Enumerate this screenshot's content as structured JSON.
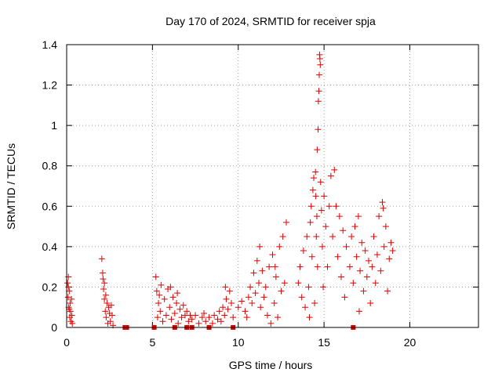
{
  "chart_data": {
    "type": "scatter",
    "title": "Day 170 of 2024, SRMTID for receiver spja",
    "xlabel": "GPS time / hours",
    "ylabel": "SRMTID / TECUs",
    "xlim": [
      0,
      24
    ],
    "ylim": [
      0,
      1.4
    ],
    "x_ticks": [
      0,
      5,
      10,
      15,
      20
    ],
    "x_tick_labels": [
      "0",
      "5",
      "10",
      "15",
      "20"
    ],
    "y_ticks": [
      0,
      0.2,
      0.4,
      0.6,
      0.8,
      1.0,
      1.2,
      1.4
    ],
    "y_tick_labels": [
      "0",
      "0.2",
      "0.4",
      "0.6",
      "0.8",
      "1",
      "1.2",
      "1.4"
    ],
    "grid": true,
    "marker": "+",
    "marker_color": "#e00000",
    "series": [
      {
        "name": "SRMTID (plus markers)",
        "points": [
          [
            0.05,
            0.22
          ],
          [
            0.08,
            0.15
          ],
          [
            0.1,
            0.25
          ],
          [
            0.12,
            0.1
          ],
          [
            0.15,
            0.18
          ],
          [
            0.18,
            0.05
          ],
          [
            0.2,
            0.12
          ],
          [
            0.22,
            0.08
          ],
          [
            0.25,
            0.03
          ],
          [
            0.28,
            0.14
          ],
          [
            0.3,
            0.06
          ],
          [
            0.33,
            0.02
          ],
          [
            0.1,
            0.2
          ],
          [
            0.15,
            0.09
          ],
          [
            2.05,
            0.34
          ],
          [
            2.1,
            0.27
          ],
          [
            2.12,
            0.24
          ],
          [
            2.15,
            0.19
          ],
          [
            2.2,
            0.14
          ],
          [
            2.25,
            0.08
          ],
          [
            2.3,
            0.05
          ],
          [
            2.35,
            0.12
          ],
          [
            2.4,
            0.02
          ],
          [
            2.45,
            0.1
          ],
          [
            2.5,
            0.07
          ],
          [
            2.55,
            0.03
          ],
          [
            2.6,
            0.11
          ],
          [
            2.65,
            0.06
          ],
          [
            2.7,
            0.01
          ],
          [
            2.2,
            0.22
          ],
          [
            2.28,
            0.16
          ],
          [
            5.2,
            0.25
          ],
          [
            5.25,
            0.18
          ],
          [
            5.3,
            0.05
          ],
          [
            5.35,
            0.12
          ],
          [
            5.45,
            0.08
          ],
          [
            5.5,
            0.21
          ],
          [
            5.6,
            0.03
          ],
          [
            5.7,
            0.14
          ],
          [
            5.8,
            0.06
          ],
          [
            5.9,
            0.19
          ],
          [
            6.0,
            0.1
          ],
          [
            6.1,
            0.04
          ],
          [
            6.2,
            0.15
          ],
          [
            6.3,
            0.07
          ],
          [
            6.4,
            0.12
          ],
          [
            6.5,
            0.02
          ],
          [
            6.6,
            0.09
          ],
          [
            6.7,
            0.05
          ],
          [
            6.8,
            0.11
          ],
          [
            6.9,
            0.06
          ],
          [
            7.0,
            0.08
          ],
          [
            7.1,
            0.03
          ],
          [
            7.2,
            0.06
          ],
          [
            5.4,
            0.16
          ],
          [
            6.05,
            0.2
          ],
          [
            6.45,
            0.17
          ],
          [
            7.3,
            0.04
          ],
          [
            7.5,
            0.06
          ],
          [
            7.7,
            0.02
          ],
          [
            7.9,
            0.05
          ],
          [
            8.0,
            0.07
          ],
          [
            8.1,
            0.03
          ],
          [
            8.3,
            0.05
          ],
          [
            8.5,
            0.02
          ],
          [
            8.6,
            0.06
          ],
          [
            8.8,
            0.04
          ],
          [
            8.9,
            0.08
          ],
          [
            9.0,
            0.03
          ],
          [
            9.1,
            0.1
          ],
          [
            9.2,
            0.06
          ],
          [
            9.3,
            0.14
          ],
          [
            9.4,
            0.09
          ],
          [
            9.5,
            0.18
          ],
          [
            9.6,
            0.12
          ],
          [
            9.7,
            0.05
          ],
          [
            9.25,
            0.2
          ],
          [
            10.0,
            0.1
          ],
          [
            10.2,
            0.13
          ],
          [
            10.4,
            0.08
          ],
          [
            10.6,
            0.15
          ],
          [
            10.7,
            0.2
          ],
          [
            10.8,
            0.12
          ],
          [
            10.9,
            0.27
          ],
          [
            11.0,
            0.17
          ],
          [
            11.1,
            0.33
          ],
          [
            11.2,
            0.22
          ],
          [
            11.3,
            0.1
          ],
          [
            11.4,
            0.28
          ],
          [
            11.5,
            0.15
          ],
          [
            11.6,
            0.2
          ],
          [
            11.7,
            0.06
          ],
          [
            11.8,
            0.3
          ],
          [
            11.9,
            0.02
          ],
          [
            12.0,
            0.36
          ],
          [
            12.1,
            0.12
          ],
          [
            12.2,
            0.25
          ],
          [
            12.3,
            0.05
          ],
          [
            12.4,
            0.4
          ],
          [
            12.5,
            0.18
          ],
          [
            12.6,
            0.45
          ],
          [
            12.7,
            0.22
          ],
          [
            12.8,
            0.52
          ],
          [
            10.5,
            0.05
          ],
          [
            11.25,
            0.4
          ],
          [
            12.15,
            0.3
          ],
          [
            13.5,
            0.22
          ],
          [
            13.6,
            0.3
          ],
          [
            13.7,
            0.15
          ],
          [
            13.8,
            0.38
          ],
          [
            13.9,
            0.1
          ],
          [
            14.0,
            0.45
          ],
          [
            14.1,
            0.2
          ],
          [
            14.15,
            0.05
          ],
          [
            14.2,
            0.52
          ],
          [
            14.25,
            0.6
          ],
          [
            14.3,
            0.35
          ],
          [
            14.35,
            0.68
          ],
          [
            14.4,
            0.74
          ],
          [
            14.45,
            0.12
          ],
          [
            14.5,
            0.77
          ],
          [
            14.52,
            0.65
          ],
          [
            14.55,
            0.45
          ],
          [
            14.58,
            0.55
          ],
          [
            14.6,
            0.88
          ],
          [
            14.62,
            0.3
          ],
          [
            14.65,
            0.98
          ],
          [
            14.67,
            1.12
          ],
          [
            14.7,
            1.17
          ],
          [
            14.72,
            1.25
          ],
          [
            14.74,
            1.35
          ],
          [
            14.76,
            1.33
          ],
          [
            14.78,
            1.3
          ],
          [
            14.8,
            0.72
          ],
          [
            14.85,
            0.58
          ],
          [
            14.9,
            0.4
          ],
          [
            14.95,
            0.2
          ],
          [
            15.0,
            0.65
          ],
          [
            15.1,
            0.5
          ],
          [
            15.2,
            0.3
          ],
          [
            15.3,
            0.6
          ],
          [
            15.4,
            0.75
          ],
          [
            15.5,
            0.45
          ],
          [
            15.6,
            0.78
          ],
          [
            15.7,
            0.6
          ],
          [
            15.8,
            0.35
          ],
          [
            15.9,
            0.55
          ],
          [
            16.0,
            0.25
          ],
          [
            16.1,
            0.48
          ],
          [
            16.2,
            0.15
          ],
          [
            16.3,
            0.4
          ],
          [
            16.5,
            0.3
          ],
          [
            16.6,
            0.45
          ],
          [
            16.7,
            0.22
          ],
          [
            16.8,
            0.5
          ],
          [
            16.9,
            0.35
          ],
          [
            17.0,
            0.55
          ],
          [
            17.1,
            0.28
          ],
          [
            17.2,
            0.42
          ],
          [
            17.3,
            0.18
          ],
          [
            17.4,
            0.38
          ],
          [
            17.5,
            0.25
          ],
          [
            17.6,
            0.33
          ],
          [
            17.7,
            0.12
          ],
          [
            17.8,
            0.3
          ],
          [
            17.9,
            0.45
          ],
          [
            18.0,
            0.22
          ],
          [
            18.1,
            0.36
          ],
          [
            18.2,
            0.55
          ],
          [
            18.3,
            0.28
          ],
          [
            18.4,
            0.62
          ],
          [
            18.5,
            0.4
          ],
          [
            18.6,
            0.5
          ],
          [
            18.7,
            0.18
          ],
          [
            18.8,
            0.34
          ],
          [
            18.9,
            0.42
          ],
          [
            19.0,
            0.38
          ],
          [
            18.45,
            0.59
          ],
          [
            17.05,
            0.08
          ]
        ]
      },
      {
        "name": "SRMTID (square markers)",
        "marker": "square",
        "points": [
          [
            3.4,
            0.0
          ],
          [
            3.5,
            0.0
          ],
          [
            5.1,
            0.0
          ],
          [
            6.3,
            0.0
          ],
          [
            7.0,
            0.0
          ],
          [
            7.3,
            0.0
          ],
          [
            8.3,
            0.0
          ],
          [
            9.7,
            0.0
          ],
          [
            16.7,
            0.0
          ]
        ]
      }
    ]
  }
}
